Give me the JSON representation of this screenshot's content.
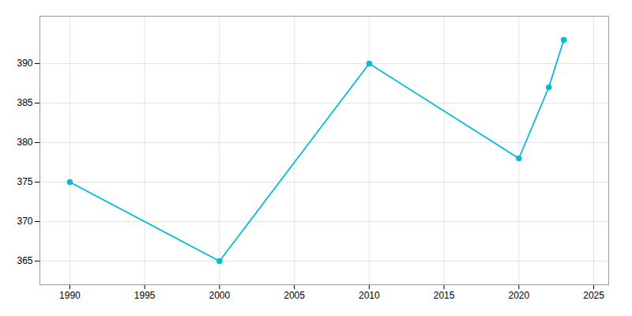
{
  "chart_data": {
    "type": "line",
    "x": [
      1990,
      2000,
      2010,
      2020,
      2022,
      2023
    ],
    "values": [
      375,
      365,
      390,
      378,
      387,
      393
    ],
    "color": "#00BCD4",
    "marker": "o",
    "xlim": [
      1988,
      2026
    ],
    "ylim": [
      362,
      396
    ],
    "xticks": [
      1990,
      1995,
      2000,
      2005,
      2010,
      2015,
      2020,
      2025
    ],
    "yticks": [
      365,
      370,
      375,
      380,
      385,
      390
    ],
    "grid": true
  }
}
